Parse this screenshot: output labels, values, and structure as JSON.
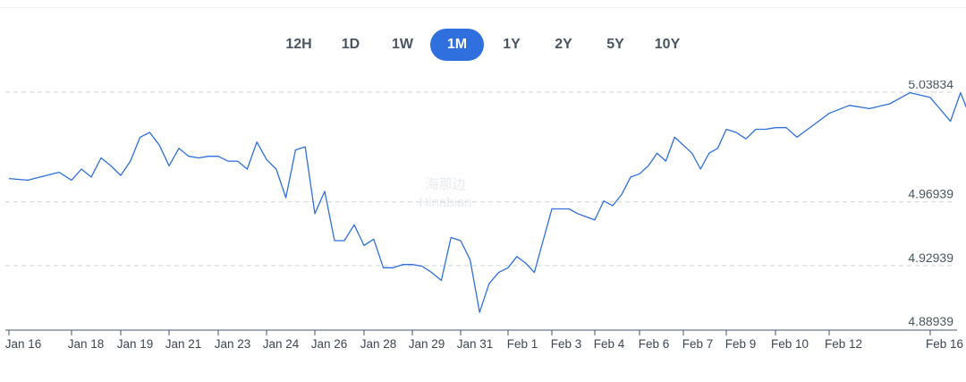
{
  "range_tabs": [
    {
      "label": "12H",
      "active": false
    },
    {
      "label": "1D",
      "active": false
    },
    {
      "label": "1W",
      "active": false
    },
    {
      "label": "1M",
      "active": true
    },
    {
      "label": "1Y",
      "active": false
    },
    {
      "label": "2Y",
      "active": false
    },
    {
      "label": "5Y",
      "active": false
    },
    {
      "label": "10Y",
      "active": false
    }
  ],
  "watermark": {
    "cn": "海那边",
    "en": "Hinabian"
  },
  "colors": {
    "line": "#2f6fde",
    "active_tab": "#2f6fde",
    "grid": "#cfd3d8"
  },
  "chart_data": {
    "type": "line",
    "title": "",
    "xlabel": "",
    "ylabel": "",
    "ylim": [
      4.88939,
      5.04
    ],
    "yticks": [
      4.88939,
      4.92939,
      4.96939,
      5.03834
    ],
    "ytick_labels": [
      "4.88939",
      "4.92939",
      "4.96939",
      "5.03834"
    ],
    "xticks": [
      0,
      1,
      2,
      3,
      4,
      5,
      6,
      7,
      8,
      9,
      10,
      11,
      12,
      13,
      14,
      15,
      16,
      17,
      18
    ],
    "xtick_labels": [
      "Jan 16",
      "Jan 18",
      "Jan 19",
      "Jan 21",
      "Jan 23",
      "Jan 24",
      "Jan 26",
      "Jan 28",
      "Jan 29",
      "Jan 31",
      "Feb 1",
      "Feb 3",
      "Feb 4",
      "Feb 6",
      "Feb 7",
      "Feb 9",
      "Feb 10",
      "Feb 12",
      "Feb 16"
    ],
    "grid": true,
    "legend": "none",
    "series": [
      {
        "x": [
          0,
          0.3,
          0.6,
          0.8,
          1.0,
          1.2,
          1.4,
          1.6,
          1.8,
          2.0,
          2.2,
          2.4,
          2.6,
          2.8,
          3.0,
          3.2,
          3.4,
          3.6,
          3.8,
          4.0,
          4.2,
          4.4,
          4.6,
          4.8,
          5.0,
          5.2,
          5.4,
          5.6,
          5.8,
          6.0,
          6.2,
          6.4,
          6.6,
          6.8,
          7.0,
          7.2,
          7.4,
          7.6,
          7.8,
          8.0,
          8.2,
          8.4,
          8.6,
          8.8,
          9.0,
          9.2,
          9.4,
          9.6,
          9.8,
          10.0,
          10.2,
          10.4,
          10.6,
          10.8,
          11.0,
          11.2,
          11.4,
          11.6,
          11.8,
          12.0,
          12.2,
          12.4,
          12.6,
          12.8,
          13.0,
          13.2,
          13.4,
          13.6,
          13.8,
          14.0,
          14.2,
          14.4,
          14.6,
          14.8,
          15.0,
          15.2,
          15.4,
          15.6,
          15.8,
          16.0,
          16.2,
          16.4,
          16.6,
          16.8,
          17.0,
          17.2,
          17.4,
          17.6,
          17.8,
          18.0,
          18.2,
          18.3,
          18.4
        ],
        "y": [
          4.984,
          4.983,
          4.986,
          4.988,
          4.983,
          4.99,
          4.985,
          4.997,
          4.992,
          4.986,
          4.995,
          5.01,
          5.013,
          5.005,
          4.992,
          5.003,
          4.998,
          4.997,
          4.998,
          4.998,
          4.995,
          4.995,
          4.99,
          5.007,
          4.996,
          4.99,
          4.972,
          5.002,
          5.004,
          4.962,
          4.976,
          4.945,
          4.945,
          4.955,
          4.942,
          4.946,
          4.928,
          4.928,
          4.93,
          4.93,
          4.929,
          4.925,
          4.92,
          4.947,
          4.945,
          4.933,
          4.9,
          4.918,
          4.925,
          4.928,
          4.935,
          4.931,
          4.925,
          4.945,
          4.965,
          4.965,
          4.965,
          4.962,
          4.96,
          4.958,
          4.97,
          4.967,
          4.974,
          4.985,
          4.987,
          4.992,
          5.0,
          4.995,
          5.01,
          5.005,
          5.0,
          4.99,
          5.0,
          5.003,
          5.015,
          5.013,
          5.009,
          5.015,
          5.015,
          5.016,
          5.016,
          5.01,
          5.015,
          5.02,
          5.025,
          5.03,
          5.028,
          5.031,
          5.038,
          5.035,
          5.02,
          5.038,
          5.022
        ]
      }
    ]
  }
}
